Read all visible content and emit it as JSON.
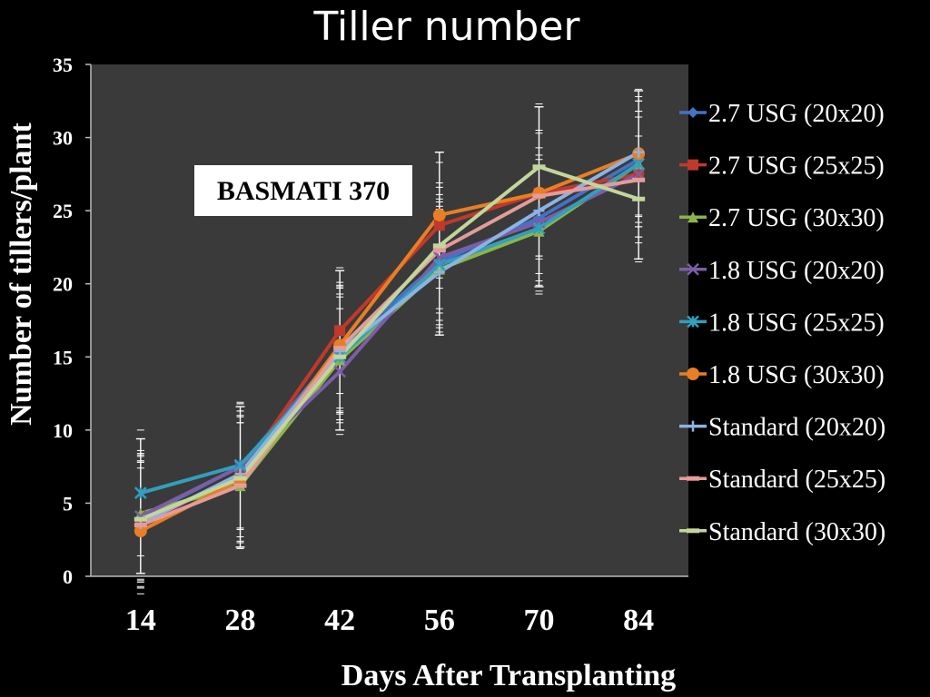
{
  "chart_data": {
    "type": "line",
    "title": "Tiller number",
    "xlabel": "Days After Transplanting",
    "ylabel": "Number of tillers/plant",
    "annotation": "BASMATI 370",
    "x": [
      14,
      28,
      42,
      56,
      70,
      84
    ],
    "ylim": [
      0,
      35
    ],
    "yticks": [
      0,
      5,
      10,
      15,
      20,
      25,
      30,
      35
    ],
    "grid": false,
    "legend_position": "right",
    "background_color": "#3a3a3a",
    "series": [
      {
        "name": "2.7 USG (20x20)",
        "color": "#4472c4",
        "marker": "diamond",
        "values": [
          4.0,
          7.5,
          15.5,
          21.5,
          24.5,
          28.5
        ]
      },
      {
        "name": "2.7 USG (25x25)",
        "color": "#c0392b",
        "marker": "square",
        "values": [
          3.5,
          7.0,
          16.8,
          24.0,
          26.2,
          27.5
        ]
      },
      {
        "name": "2.7 USG (30x30)",
        "color": "#8bb54a",
        "marker": "triangle",
        "values": [
          4.3,
          6.2,
          14.8,
          21.0,
          23.6,
          28.2
        ]
      },
      {
        "name": "1.8 USG (20x20)",
        "color": "#7b5ea7",
        "marker": "x",
        "values": [
          4.1,
          7.5,
          14.0,
          21.8,
          24.2,
          27.5
        ]
      },
      {
        "name": "1.8 USG (25x25)",
        "color": "#31a0bd",
        "marker": "star",
        "values": [
          5.7,
          7.6,
          15.0,
          21.3,
          23.8,
          28.2
        ]
      },
      {
        "name": "1.8 USG (30x30)",
        "color": "#e87e25",
        "marker": "circle",
        "values": [
          3.1,
          6.6,
          15.8,
          24.7,
          26.2,
          28.9
        ]
      },
      {
        "name": "Standard (20x20)",
        "color": "#8db3e2",
        "marker": "plus",
        "values": [
          3.6,
          7.0,
          15.4,
          20.8,
          25.0,
          29.0
        ]
      },
      {
        "name": "Standard (25x25)",
        "color": "#e49c9b",
        "marker": "dash",
        "values": [
          3.5,
          6.2,
          15.6,
          22.3,
          26.0,
          27.1
        ]
      },
      {
        "name": "Standard (30x30)",
        "color": "#c3d69b",
        "marker": "dash",
        "values": [
          3.9,
          6.7,
          15.0,
          22.6,
          28.0,
          25.8
        ]
      }
    ],
    "error_bars": {
      "color": "#ffffff",
      "low": [
        0.2,
        2.0,
        10.0,
        16.5,
        19.8,
        21.7
      ],
      "high": [
        9.4,
        11.6,
        20.9,
        29.0,
        32.1,
        33.2
      ]
    }
  }
}
